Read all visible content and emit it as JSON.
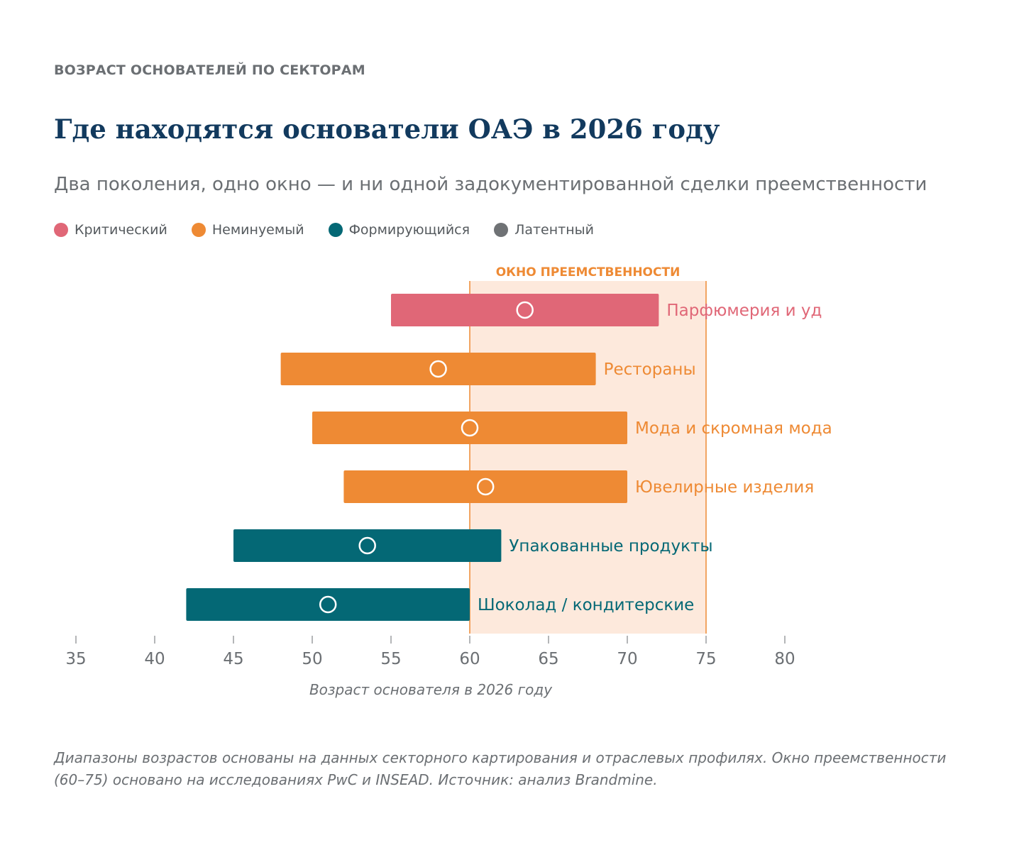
{
  "header": {
    "eyebrow": "ВОЗРАСТ ОСНОВАТЕЛЕЙ ПО СЕКТОРАМ",
    "title": "Где находятся основатели ОАЭ в 2026 году",
    "subtitle": "Два поколения, одно окно — и ни одной задокументированной сделки преемственности"
  },
  "legend": [
    {
      "label": "Критический",
      "color": "#e06777"
    },
    {
      "label": "Неминуемый",
      "color": "#ee8a34"
    },
    {
      "label": "Формирующийся",
      "color": "#046875"
    },
    {
      "label": "Латентный",
      "color": "#6f7275"
    }
  ],
  "chart_data": {
    "type": "range-bar",
    "xlabel": "Возраст основателя в 2026 году",
    "xlim": [
      35,
      80
    ],
    "xticks": [
      35,
      40,
      45,
      50,
      55,
      60,
      65,
      70,
      75,
      80
    ],
    "window": {
      "label": "ОКНО ПРЕЕМСТВЕННОСТИ",
      "from": 60,
      "to": 75,
      "color": "#fde9dc",
      "line_color": "#ee8a34"
    },
    "series": [
      {
        "sector": "Парфюмерия и уд",
        "min": 55,
        "max": 72,
        "median": 63.5,
        "status": "Критический",
        "color": "#e06777"
      },
      {
        "sector": "Рестораны",
        "min": 48,
        "max": 68,
        "median": 58,
        "status": "Неминуемый",
        "color": "#ee8a34"
      },
      {
        "sector": "Мода и скромная мода",
        "min": 50,
        "max": 70,
        "median": 60,
        "status": "Неминуемый",
        "color": "#ee8a34"
      },
      {
        "sector": "Ювелирные изделия",
        "min": 52,
        "max": 70,
        "median": 61,
        "status": "Неминуемый",
        "color": "#ee8a34"
      },
      {
        "sector": "Упакованные продукты",
        "min": 45,
        "max": 62,
        "median": 53.5,
        "status": "Формирующийся",
        "color": "#046875"
      },
      {
        "sector": "Шоколад / кондитерские",
        "min": 42,
        "max": 60,
        "median": 51,
        "status": "Формирующийся",
        "color": "#046875"
      }
    ]
  },
  "footnote": "Диапазоны возрастов основаны на данных секторного картирования и отраслевых профилях. Окно преемственности (60–75) основано на исследованиях PwC и INSEAD. Источник: анализ Brandmine."
}
